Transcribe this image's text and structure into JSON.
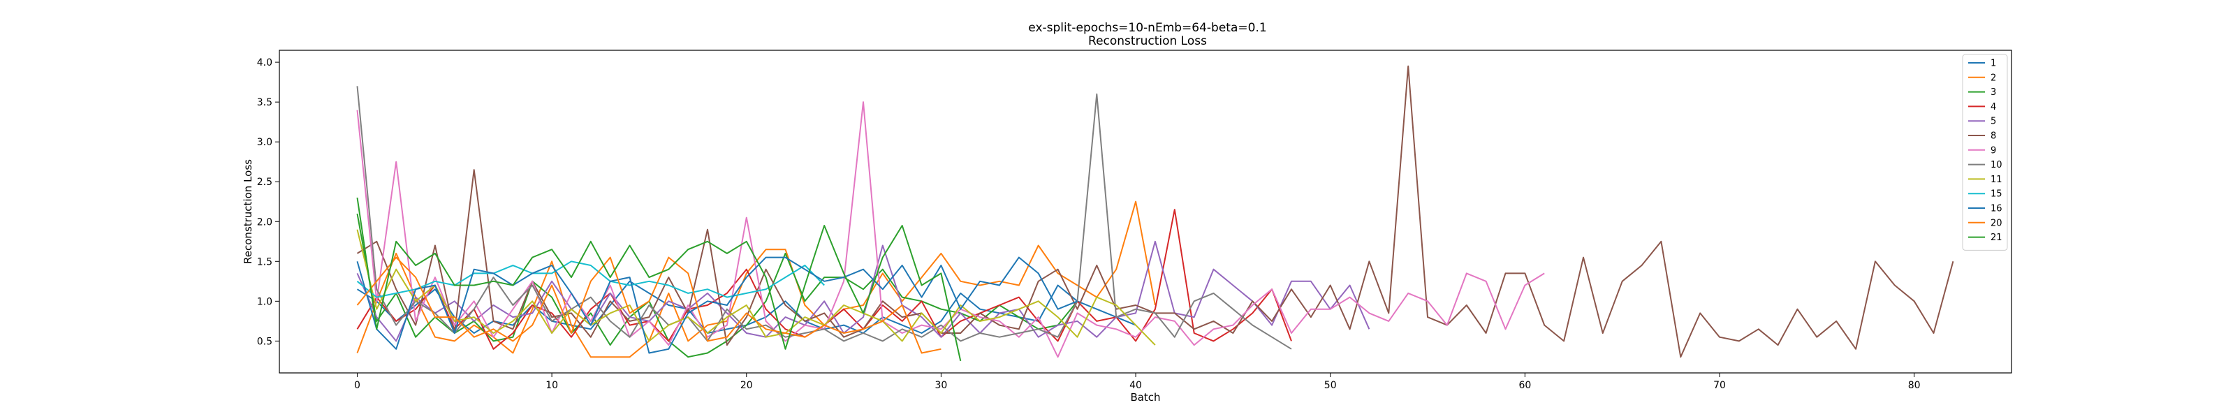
{
  "chart_data": {
    "type": "line",
    "title": "ex-split-epochs=10-nEmb=64-beta=0.1",
    "subtitle": "Reconstruction Loss",
    "xlabel": "Batch",
    "ylabel": "Reconstruction Loss",
    "xlim": [
      -4,
      85
    ],
    "ylim": [
      0.1,
      4.15
    ],
    "xticks": [
      0,
      10,
      20,
      30,
      40,
      50,
      60,
      70,
      80
    ],
    "yticks": [
      0.5,
      1.0,
      1.5,
      2.0,
      2.5,
      3.0,
      3.5,
      4.0
    ],
    "xtick_labels": [
      "0",
      "10",
      "20",
      "30",
      "40",
      "50",
      "60",
      "70",
      "80"
    ],
    "ytick_labels": [
      "0.5",
      "1.0",
      "1.5",
      "2.0",
      "2.5",
      "3.0",
      "3.5",
      "4.0"
    ],
    "legend_position": "top-right",
    "series": [
      {
        "name": "1",
        "color": "#1f77b4",
        "values": [
          1.15,
          1.0,
          0.75,
          0.95,
          1.15,
          0.8,
          0.6,
          0.75,
          0.7,
          0.95,
          0.75,
          0.7,
          0.65,
          0.95,
          1.25,
          1.1,
          0.95,
          0.9,
          0.6,
          0.65,
          0.7,
          0.8,
          1.0,
          0.75,
          0.65,
          0.7,
          0.6,
          0.8,
          0.7,
          0.6,
          0.75,
          1.1,
          0.9,
          0.85,
          0.8,
          0.75,
          1.2,
          1.0,
          0.9,
          0.8,
          0.7
        ]
      },
      {
        "name": "2",
        "color": "#ff7f0e",
        "values": [
          0.35,
          1.0,
          1.6,
          1.05,
          0.55,
          0.5,
          0.7,
          0.55,
          0.35,
          0.9,
          1.5,
          0.7,
          0.3,
          0.3,
          0.3,
          0.5,
          1.1,
          0.5,
          0.7,
          0.75,
          1.35,
          1.65,
          1.65,
          0.95,
          0.7,
          0.9,
          0.95,
          1.35,
          1.0,
          1.3,
          1.6,
          1.25,
          1.2,
          1.25,
          1.2,
          1.7,
          1.35,
          1.2,
          1.05,
          1.4,
          2.25,
          0.95
        ]
      },
      {
        "name": "3",
        "color": "#2ca02c",
        "values": [
          2.1,
          0.75,
          1.1,
          0.55,
          0.8,
          0.6,
          0.75,
          0.5,
          0.55,
          1.25,
          1.05,
          0.6,
          0.85,
          0.45,
          0.8,
          1.0,
          0.5,
          0.3,
          0.35,
          0.5,
          0.7,
          1.0,
          1.6,
          1.0,
          1.3,
          1.3,
          1.15,
          1.4,
          1.05,
          1.0,
          0.9,
          0.85,
          0.75,
          0.95,
          0.8,
          0.65,
          0.7,
          1.0
        ]
      },
      {
        "name": "4",
        "color": "#d62728",
        "values": [
          0.65,
          1.05,
          0.75,
          0.9,
          1.2,
          0.65,
          0.9,
          0.4,
          0.6,
          0.95,
          0.85,
          0.55,
          0.9,
          1.1,
          0.7,
          0.75,
          0.5,
          0.9,
          0.95,
          1.1,
          1.4,
          0.9,
          0.65,
          0.55,
          0.7,
          0.9,
          0.65,
          0.95,
          0.75,
          1.0,
          0.55,
          0.75,
          0.85,
          0.95,
          1.05,
          0.75,
          0.5,
          1.0,
          0.75,
          0.8,
          0.5,
          0.9,
          2.15,
          0.6,
          0.5,
          0.65,
          0.85,
          1.15,
          0.5
        ]
      },
      {
        "name": "5",
        "color": "#9467bd",
        "values": [
          1.35,
          0.8,
          0.5,
          1.05,
          0.85,
          1.0,
          0.75,
          0.95,
          0.8,
          0.85,
          1.25,
          0.9,
          0.7,
          1.1,
          0.8,
          0.75,
          1.0,
          0.9,
          1.1,
          0.85,
          0.6,
          0.55,
          0.8,
          0.7,
          1.0,
          0.6,
          0.8,
          1.7,
          0.95,
          0.8,
          0.55,
          0.85,
          0.6,
          0.85,
          0.9,
          0.55,
          0.7,
          0.75,
          0.55,
          0.8,
          0.85,
          1.75,
          0.85,
          0.8,
          1.4,
          1.2,
          1.0,
          0.7,
          1.25,
          1.25,
          0.9,
          1.2,
          0.65
        ]
      },
      {
        "name": "8",
        "color": "#8c564b",
        "values": [
          1.6,
          1.75,
          1.15,
          0.7,
          1.7,
          0.6,
          2.65,
          0.75,
          0.65,
          1.25,
          0.8,
          0.85,
          0.55,
          1.0,
          0.75,
          0.8,
          1.3,
          0.85,
          1.9,
          0.45,
          0.8,
          1.4,
          0.95,
          0.75,
          0.85,
          0.55,
          0.65,
          1.0,
          0.8,
          0.85,
          0.6,
          0.6,
          0.85,
          0.7,
          0.65,
          1.25,
          1.4,
          0.9,
          1.45,
          0.9,
          0.95,
          0.85,
          0.85,
          0.65,
          0.75,
          0.6,
          1.0,
          0.75,
          1.15,
          0.8,
          1.2,
          0.65,
          1.5,
          0.85,
          3.95,
          0.8,
          0.7,
          0.95,
          0.6,
          1.35,
          1.35,
          0.7,
          0.5,
          1.55,
          0.6,
          1.25,
          1.45,
          1.75,
          0.3,
          0.85,
          0.55,
          0.5,
          0.65,
          0.45,
          0.9,
          0.55,
          0.75,
          0.4,
          1.5,
          1.2,
          1.0,
          0.6,
          1.5
        ]
      },
      {
        "name": "9",
        "color": "#e377c2",
        "values": [
          3.4,
          1.0,
          2.75,
          0.75,
          1.3,
          0.7,
          1.0,
          0.55,
          0.9,
          1.25,
          0.6,
          1.1,
          0.75,
          1.2,
          0.55,
          0.75,
          0.45,
          0.95,
          0.55,
          0.7,
          2.05,
          0.75,
          0.5,
          0.7,
          0.65,
          1.25,
          3.5,
          0.75,
          0.6,
          0.7,
          0.65,
          0.9,
          0.8,
          0.75,
          0.55,
          0.8,
          0.3,
          0.85,
          0.7,
          0.65,
          0.55,
          0.8,
          0.75,
          0.45,
          0.65,
          0.7,
          0.95,
          1.15,
          0.6,
          0.9,
          0.9,
          1.05,
          0.85,
          0.75,
          1.1,
          1.0,
          0.7,
          1.35,
          1.25,
          0.65,
          1.2,
          1.35
        ]
      },
      {
        "name": "10",
        "color": "#7f7f7f",
        "values": [
          3.7,
          1.15,
          0.7,
          1.0,
          0.85,
          0.6,
          0.9,
          1.3,
          0.95,
          1.2,
          0.75,
          0.9,
          1.05,
          0.75,
          0.55,
          0.95,
          0.7,
          0.8,
          0.5,
          0.9,
          0.65,
          0.7,
          0.55,
          0.6,
          0.65,
          0.5,
          0.6,
          0.5,
          0.65,
          0.55,
          0.7,
          0.5,
          0.6,
          0.55,
          0.6,
          0.65,
          0.55,
          1.0,
          3.6,
          0.8,
          0.9,
          0.85,
          0.55,
          1.0,
          1.1,
          0.9,
          0.7,
          0.55,
          0.4
        ]
      },
      {
        "name": "11",
        "color": "#bcbd22",
        "values": [
          1.9,
          0.9,
          1.4,
          1.0,
          1.2,
          0.75,
          0.8,
          0.6,
          0.75,
          1.0,
          0.6,
          0.9,
          0.7,
          0.85,
          0.95,
          0.5,
          0.7,
          0.8,
          0.6,
          0.8,
          0.95,
          0.55,
          0.6,
          0.8,
          0.7,
          0.95,
          0.85,
          0.75,
          0.5,
          0.85,
          0.6,
          0.95,
          0.75,
          0.8,
          0.9,
          1.0,
          0.8,
          0.55,
          1.05,
          0.95,
          0.7,
          0.45
        ]
      },
      {
        "name": "15",
        "color": "#17becf",
        "values": [
          1.25,
          1.05,
          1.1,
          1.15,
          1.25,
          1.2,
          1.35,
          1.35,
          1.45,
          1.35,
          1.35,
          1.5,
          1.45,
          1.25,
          1.2,
          1.25,
          1.2,
          1.1,
          1.15,
          1.05,
          1.1,
          1.15,
          1.3,
          1.45,
          1.2
        ]
      },
      {
        "name": "16",
        "color": "#1f77b4",
        "values": [
          1.5,
          0.65,
          0.4,
          1.15,
          1.2,
          0.6,
          1.4,
          1.35,
          1.2,
          1.35,
          1.45,
          1.1,
          0.7,
          1.25,
          1.3,
          0.35,
          0.4,
          0.85,
          1.0,
          0.95,
          1.3,
          1.55,
          1.55,
          1.4,
          1.25,
          1.3,
          1.4,
          1.15,
          1.45,
          1.05,
          1.45,
          0.9,
          1.25,
          1.2,
          1.55,
          1.35,
          0.9,
          1.0
        ]
      },
      {
        "name": "20",
        "color": "#ff7f0e",
        "values": [
          0.95,
          1.25,
          1.55,
          1.3,
          0.8,
          0.8,
          0.55,
          0.65,
          0.5,
          0.7,
          1.2,
          0.6,
          1.25,
          1.55,
          0.85,
          1.0,
          1.55,
          1.35,
          0.5,
          0.55,
          0.85,
          0.65,
          0.6,
          0.55,
          0.7,
          0.6,
          0.65,
          0.75,
          0.95,
          0.35,
          0.4
        ]
      },
      {
        "name": "21",
        "color": "#2ca02c",
        "values": [
          2.3,
          0.65,
          1.75,
          1.45,
          1.6,
          1.2,
          1.2,
          1.25,
          1.2,
          1.55,
          1.65,
          1.3,
          1.75,
          1.3,
          1.7,
          1.3,
          1.4,
          1.65,
          1.75,
          1.6,
          1.75,
          1.3,
          0.4,
          1.2,
          1.95,
          1.35,
          0.85,
          1.55,
          1.95,
          1.2,
          1.35,
          0.25
        ]
      }
    ]
  }
}
